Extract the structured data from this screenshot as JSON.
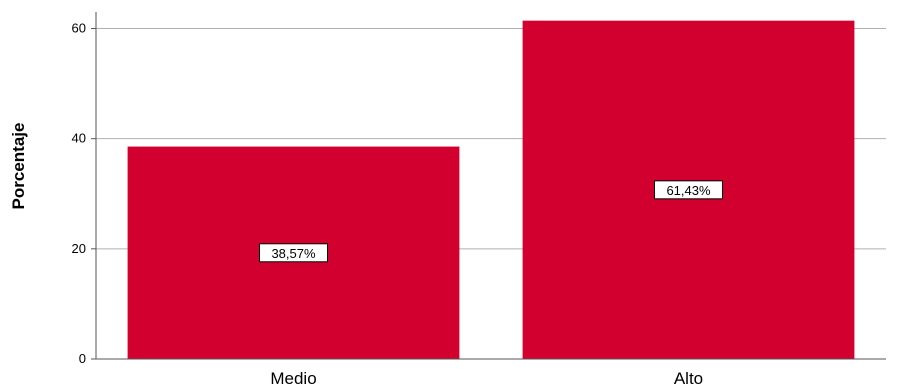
{
  "chart_data": {
    "type": "bar",
    "categories": [
      "Medio",
      "Alto"
    ],
    "values": [
      38.57,
      61.43
    ],
    "data_labels": [
      "38,57%",
      "61,43%"
    ],
    "title": "",
    "xlabel": "",
    "ylabel": "Porcentaje",
    "ylim": [
      0,
      63
    ],
    "yticks": [
      0,
      20,
      40,
      60
    ],
    "ytick_labels": [
      "0",
      "20",
      "40",
      "60"
    ],
    "grid": true,
    "bar_color": "#d2002f",
    "grid_color": "#b0b0b0",
    "axis_color": "#555555"
  }
}
